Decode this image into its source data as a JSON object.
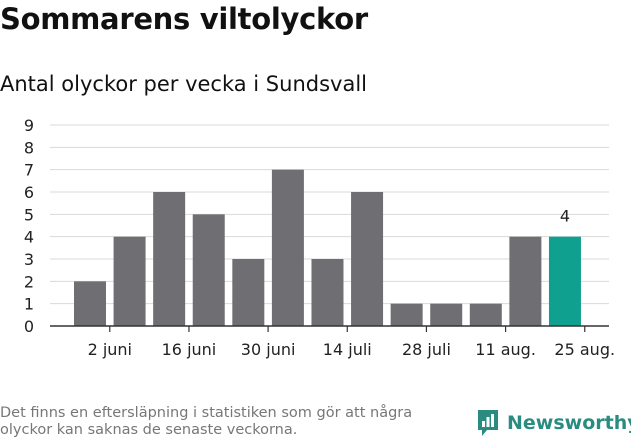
{
  "title": "Sommarens viltolyckor",
  "subtitle": "Antal olyckor per vecka i Sundsvall",
  "footnote": "Det finns en eftersläpning i statistiken som gör att några olyckor kan saknas de senaste veckorna.",
  "brand": "Newsworthy",
  "colors": {
    "bar": "#6f6e72",
    "highlight": "#0fa08f",
    "grid": "#d9d9d9",
    "brand": "#2a8c80"
  },
  "chart_data": {
    "type": "bar",
    "values": [
      2,
      4,
      6,
      5,
      3,
      7,
      3,
      6,
      1,
      1,
      1,
      4,
      4
    ],
    "highlight_index": 12,
    "highlight_label": "4",
    "x_tick_labels": [
      {
        "index": 0.5,
        "label": "2 juni"
      },
      {
        "index": 2.5,
        "label": "16 juni"
      },
      {
        "index": 4.5,
        "label": "30 juni"
      },
      {
        "index": 6.5,
        "label": "14 juli"
      },
      {
        "index": 8.5,
        "label": "28 juli"
      },
      {
        "index": 10.5,
        "label": "11 aug."
      },
      {
        "index": 12.5,
        "label": "25 aug."
      }
    ],
    "y_ticks": [
      0,
      1,
      2,
      3,
      4,
      5,
      6,
      7,
      8,
      9
    ],
    "ylim": [
      0,
      9
    ],
    "grid": true
  }
}
